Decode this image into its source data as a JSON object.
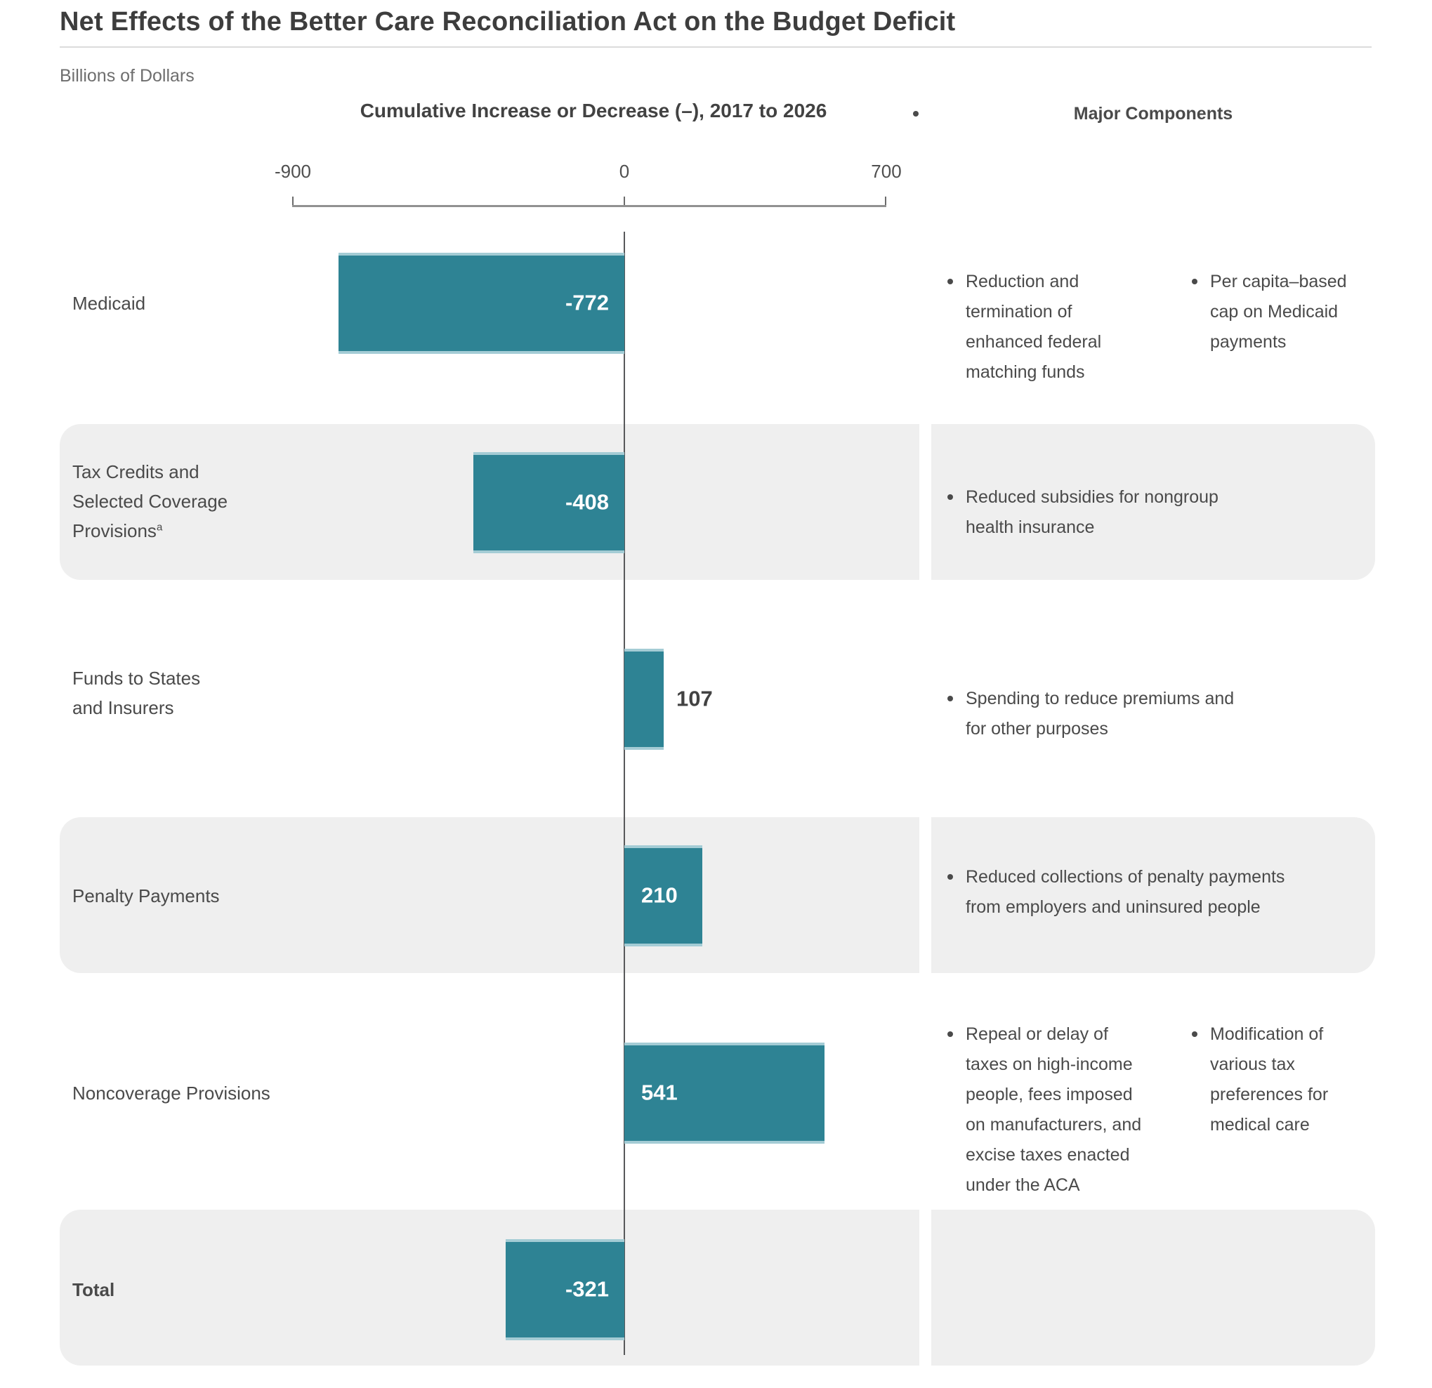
{
  "title": "Net Effects of the Better Care Reconciliation Act on the Budget Deficit",
  "units_label": "Billions of Dollars",
  "columns": {
    "chart_header": "Cumulative Increase or Decrease (–), 2017 to 2026",
    "components_header": "Major Components"
  },
  "axis": {
    "tick_labels": [
      "-900",
      "0",
      "700"
    ],
    "tick_values": [
      -900,
      0,
      700
    ]
  },
  "colors": {
    "bar_teal": "#2e8394",
    "row_band_gray": "#efefef",
    "text_dark": "#424242"
  },
  "chart_data": {
    "type": "bar",
    "orientation": "horizontal",
    "title": "Net Effects of the Better Care Reconciliation Act on the Budget Deficit",
    "units": "Billions of Dollars",
    "xlabel": "Cumulative Increase or Decrease (–), 2017 to 2026",
    "xlim": [
      -900,
      700
    ],
    "x_ticks": [
      -900,
      0,
      700
    ],
    "grid": false,
    "bar_color": "#2e8394",
    "categories": [
      "Medicaid",
      "Tax Credits and Selected Coverage Provisions",
      "Funds to States and Insurers",
      "Penalty Payments",
      "Noncoverage Provisions",
      "Total"
    ],
    "values": [
      -772,
      -408,
      107,
      210,
      541,
      -321
    ]
  },
  "rows": [
    {
      "label": "Medicaid",
      "value": -772,
      "value_label": "-772",
      "shaded": false,
      "components": [
        "Reduction and\ntermination of\nenhanced federal\nmatching funds",
        "Per capita–based\ncap on Medicaid\npayments"
      ]
    },
    {
      "label": "Tax Credits and\nSelected Coverage\nProvisions",
      "label_sup": "a",
      "value": -408,
      "value_label": "-408",
      "shaded": true,
      "components": [
        "Reduced subsidies for nongroup\nhealth insurance"
      ]
    },
    {
      "label": "Funds to States\nand Insurers",
      "value": 107,
      "value_label": "107",
      "shaded": false,
      "components": [
        "Spending to reduce premiums and\nfor other purposes"
      ]
    },
    {
      "label": "Penalty Payments",
      "value": 210,
      "value_label": "210",
      "shaded": true,
      "components": [
        "Reduced collections of penalty payments\nfrom employers and uninsured people"
      ]
    },
    {
      "label": "Noncoverage Provisions",
      "value": 541,
      "value_label": "541",
      "shaded": false,
      "components": [
        "Repeal or delay of\ntaxes on high-income\npeople, fees imposed\non manufacturers, and\nexcise taxes enacted\nunder the ACA",
        "Modification of\nvarious tax\npreferences for\nmedical care"
      ]
    },
    {
      "label": "Total",
      "value": -321,
      "value_label": "-321",
      "shaded": true,
      "components": []
    }
  ]
}
